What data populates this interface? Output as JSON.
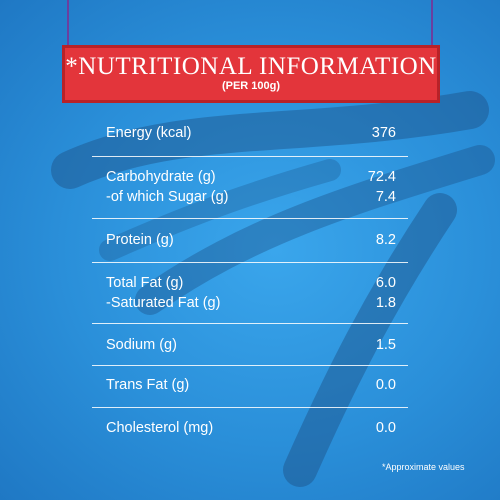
{
  "header": {
    "title": "*NUTRITIONAL INFORMATION",
    "subtitle": "(PER 100g)"
  },
  "table": {
    "groups": [
      {
        "rows": [
          {
            "label": "Energy (kcal)",
            "value": "376"
          }
        ]
      },
      {
        "rows": [
          {
            "label": "Carbohydrate (g)",
            "value": "72.4"
          },
          {
            "label": "-of which Sugar (g)",
            "value": "7.4"
          }
        ]
      },
      {
        "rows": [
          {
            "label": "Protein (g)",
            "value": "8.2"
          }
        ]
      },
      {
        "rows": [
          {
            "label": "Total Fat (g)",
            "value": "6.0"
          },
          {
            "label": "-Saturated Fat (g)",
            "value": "1.8"
          }
        ]
      },
      {
        "rows": [
          {
            "label": "Sodium (g)",
            "value": "1.5"
          }
        ]
      },
      {
        "rows": [
          {
            "label": "Trans Fat (g)",
            "value": "0.0"
          }
        ]
      },
      {
        "rows": [
          {
            "label": "Cholesterol (mg)",
            "value": "0.0"
          }
        ]
      }
    ]
  },
  "footnote": "*Approximate values"
}
